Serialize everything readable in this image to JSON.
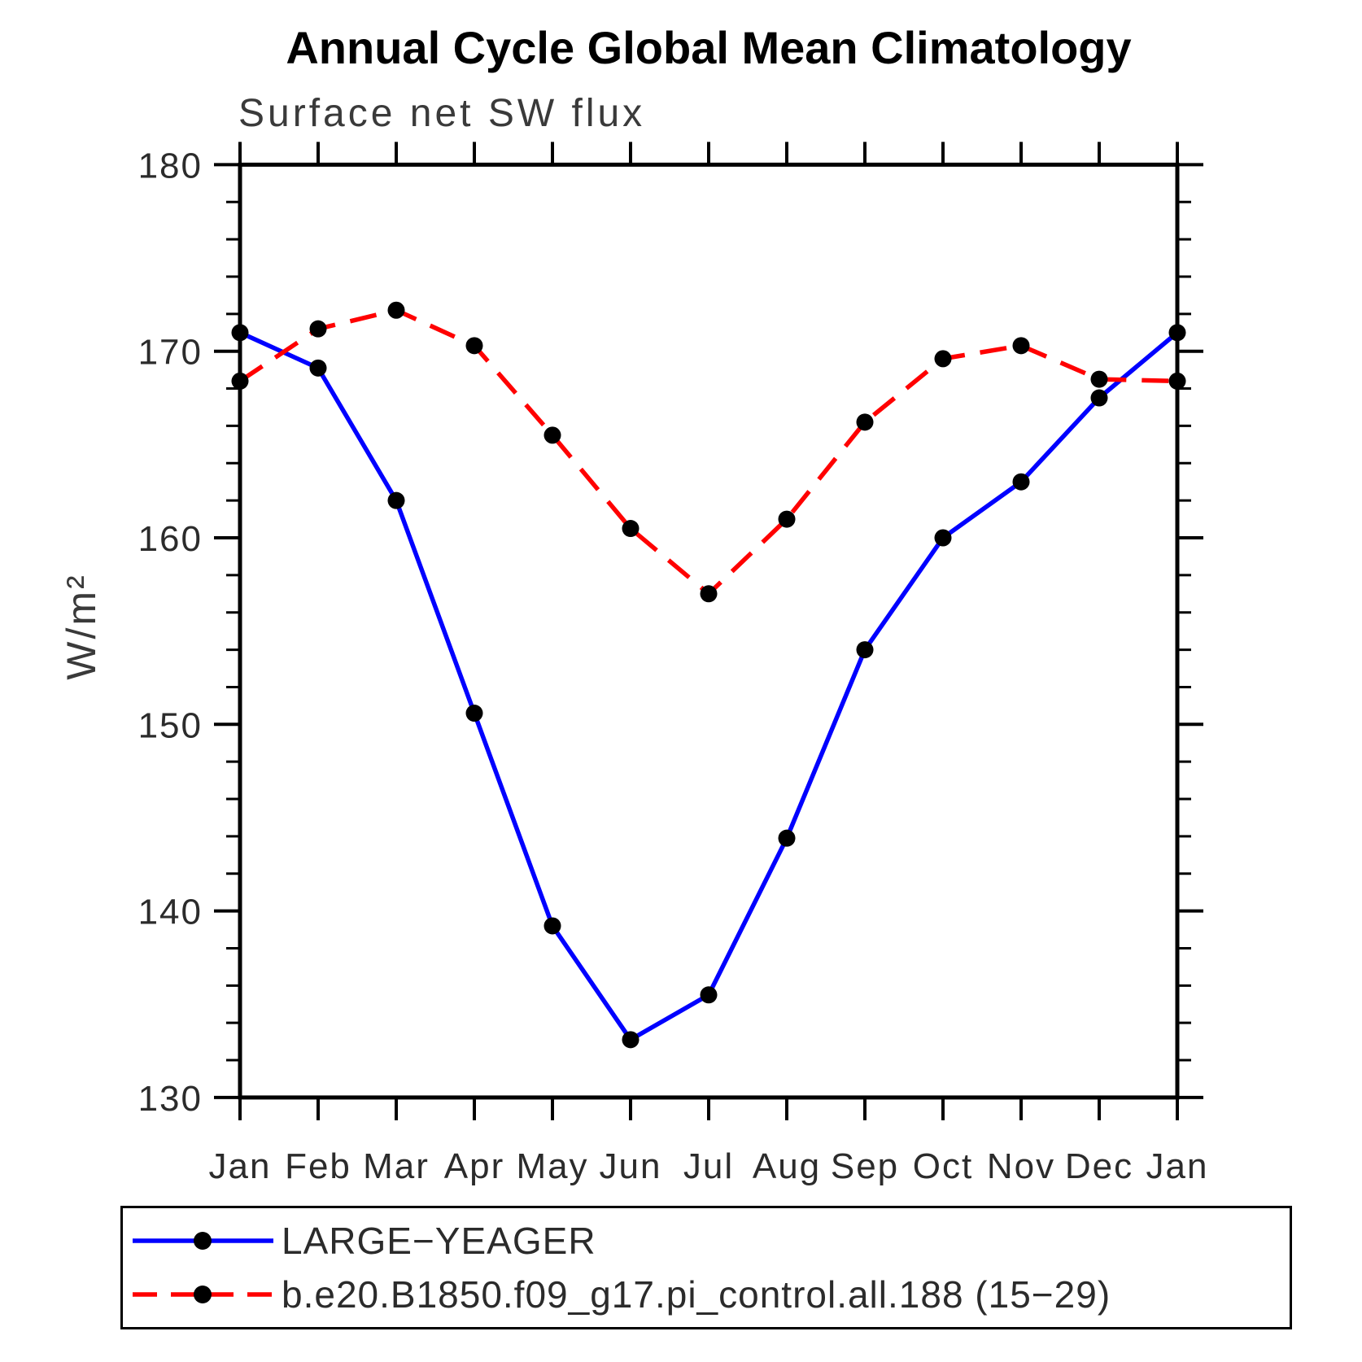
{
  "title": "Annual Cycle Global Mean Climatology",
  "subtitle": "Surface net SW flux",
  "y_axis_label": "W/m²",
  "chart_data": {
    "type": "line",
    "categories": [
      "Jan",
      "Feb",
      "Mar",
      "Apr",
      "May",
      "Jun",
      "Jul",
      "Aug",
      "Sep",
      "Oct",
      "Nov",
      "Dec",
      "Jan"
    ],
    "xlabel": "",
    "ylabel": "W/m²",
    "ylim": [
      130,
      180
    ],
    "y_major_ticks": [
      130,
      140,
      150,
      160,
      170,
      180
    ],
    "y_minor_step": 2,
    "grid": false,
    "legend_position": "bottom-left boxed",
    "series": [
      {
        "name": "LARGE−YEAGER",
        "line_color": "#0000ff",
        "line_style": "solid",
        "marker": "filled-circle",
        "marker_color": "#000000",
        "values": [
          171.0,
          169.1,
          162.0,
          150.6,
          139.2,
          133.1,
          135.5,
          143.9,
          154.0,
          160.0,
          163.0,
          167.5,
          171.0
        ]
      },
      {
        "name": "b.e20.B1850.f09_g17.pi_control.all.188 (15−29)",
        "line_color": "#ff0000",
        "line_style": "dashed",
        "marker": "filled-circle",
        "marker_color": "#000000",
        "values": [
          168.4,
          171.2,
          172.2,
          170.3,
          165.5,
          160.5,
          157.0,
          161.0,
          166.2,
          169.6,
          170.3,
          168.5,
          168.4
        ]
      }
    ]
  }
}
